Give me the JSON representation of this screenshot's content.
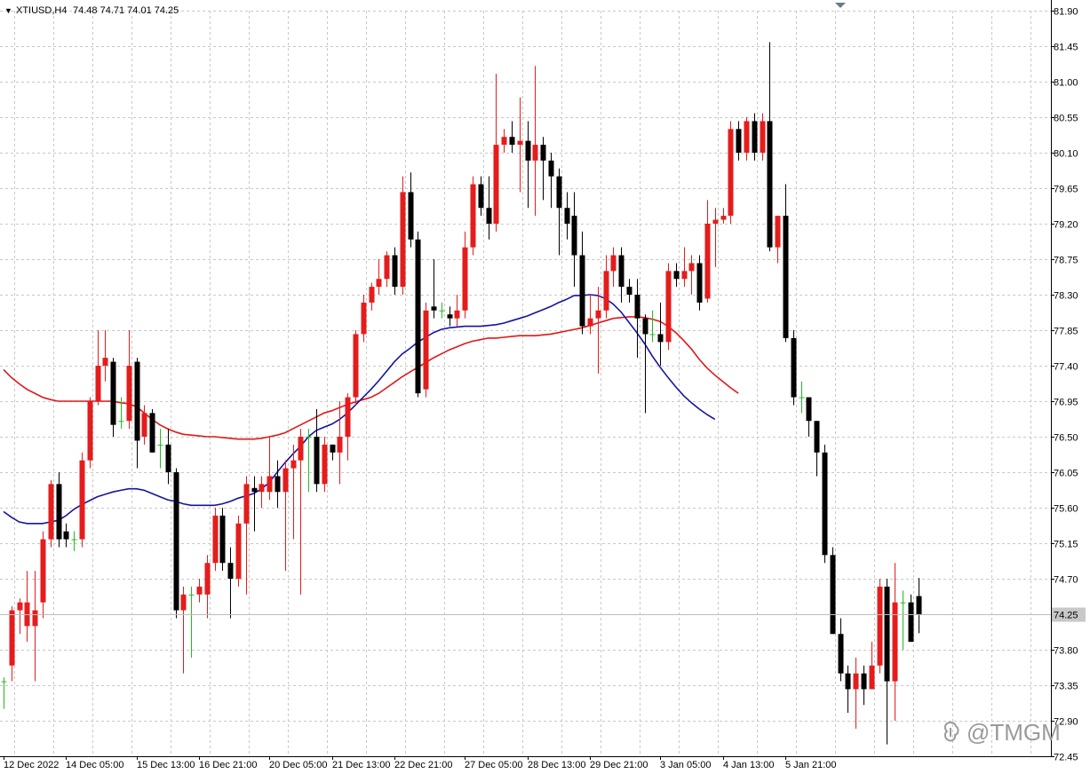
{
  "header": {
    "arrow_glyph": "▼",
    "symbol": "XTIUSD,H4",
    "ohlc": "74.48 74.71 74.01 74.25"
  },
  "watermark": {
    "text": "@TMGM",
    "icon": "tmgm-logo-icon"
  },
  "colors": {
    "bull": "#e51c1c",
    "bear": "#000000",
    "doji": "#22bb22",
    "ma_slow": "#e01818",
    "ma_fast": "#1414a0",
    "grid": "#c8c8c8",
    "price_tag_bg": "#c8c8c8",
    "current_price_line": "#bcbcbc"
  },
  "chart_data": {
    "type": "candlestick",
    "symbol": "XTIUSD",
    "timeframe": "H4",
    "grid": true,
    "ylim": [
      72.45,
      81.9
    ],
    "y_ticks": [
      "81.90",
      "81.45",
      "81.00",
      "80.55",
      "80.10",
      "79.65",
      "79.20",
      "78.75",
      "78.30",
      "77.85",
      "77.40",
      "76.95",
      "76.50",
      "76.05",
      "75.60",
      "75.15",
      "74.70",
      "74.25",
      "73.80",
      "73.35",
      "72.90",
      "72.45"
    ],
    "current_price": "74.25",
    "x_ticks": [
      {
        "bar": 0,
        "label": "12 Dec 2022"
      },
      {
        "bar": 8,
        "label": "14 Dec 05:00"
      },
      {
        "bar": 17,
        "label": "15 Dec 13:00"
      },
      {
        "bar": 25,
        "label": "16 Dec 21:00"
      },
      {
        "bar": 34,
        "label": "20 Dec 05:00"
      },
      {
        "bar": 42,
        "label": "21 Dec 13:00"
      },
      {
        "bar": 50,
        "label": "22 Dec 21:00"
      },
      {
        "bar": 59,
        "label": "27 Dec 05:00"
      },
      {
        "bar": 67,
        "label": "28 Dec 13:00"
      },
      {
        "bar": 75,
        "label": "29 Dec 21:00"
      },
      {
        "bar": 84,
        "label": "3 Jan 05:00"
      },
      {
        "bar": 92,
        "label": "4 Jan 13:00"
      },
      {
        "bar": 100,
        "label": "5 Jan 21:00"
      }
    ],
    "candles": [
      [
        73.4,
        73.4,
        73.05,
        73.45
      ],
      [
        73.6,
        74.3,
        73.4,
        74.35
      ],
      [
        74.3,
        74.4,
        74.0,
        74.45
      ],
      [
        74.1,
        74.4,
        73.9,
        74.8
      ],
      [
        74.1,
        74.3,
        73.4,
        74.8
      ],
      [
        74.4,
        75.2,
        74.2,
        75.3
      ],
      [
        75.2,
        75.9,
        75.1,
        75.95
      ],
      [
        75.9,
        75.2,
        75.1,
        76.05
      ],
      [
        75.3,
        75.2,
        75.1,
        75.4
      ],
      [
        75.2,
        75.2,
        75.05,
        75.3
      ],
      [
        75.2,
        76.2,
        75.1,
        76.3
      ],
      [
        76.2,
        76.95,
        76.1,
        77.0
      ],
      [
        76.95,
        77.4,
        76.9,
        77.85
      ],
      [
        77.4,
        77.5,
        77.2,
        77.85
      ],
      [
        77.45,
        76.65,
        76.5,
        77.5
      ],
      [
        76.7,
        76.7,
        76.6,
        77.0
      ],
      [
        76.7,
        77.4,
        76.6,
        77.85
      ],
      [
        77.45,
        76.45,
        76.1,
        77.5
      ],
      [
        76.5,
        76.8,
        76.4,
        76.9
      ],
      [
        76.8,
        76.3,
        76.3,
        76.85
      ],
      [
        76.4,
        76.4,
        76.1,
        76.6
      ],
      [
        76.4,
        76.05,
        75.9,
        76.6
      ],
      [
        76.05,
        74.3,
        74.2,
        76.1
      ],
      [
        74.3,
        74.5,
        73.5,
        74.6
      ],
      [
        74.5,
        74.5,
        73.7,
        74.6
      ],
      [
        74.5,
        74.6,
        74.4,
        74.7
      ],
      [
        74.5,
        74.9,
        74.2,
        75.0
      ],
      [
        74.9,
        75.5,
        74.8,
        75.6
      ],
      [
        75.5,
        74.9,
        74.8,
        75.6
      ],
      [
        74.9,
        74.7,
        74.2,
        75.1
      ],
      [
        74.7,
        75.4,
        74.6,
        75.5
      ],
      [
        75.4,
        75.9,
        74.5,
        76.0
      ],
      [
        75.85,
        75.8,
        75.3,
        76.0
      ],
      [
        75.8,
        75.9,
        75.6,
        76.0
      ],
      [
        75.8,
        76.0,
        75.7,
        76.5
      ],
      [
        76.0,
        75.8,
        75.6,
        76.2
      ],
      [
        75.8,
        76.1,
        74.8,
        76.2
      ],
      [
        76.1,
        76.2,
        75.2,
        76.4
      ],
      [
        76.2,
        76.5,
        74.5,
        76.6
      ],
      [
        76.5,
        76.5,
        75.8,
        76.6
      ],
      [
        76.5,
        75.9,
        75.8,
        76.85
      ],
      [
        75.9,
        76.4,
        75.8,
        76.5
      ],
      [
        76.4,
        76.3,
        76.2,
        76.4
      ],
      [
        76.3,
        76.5,
        75.9,
        76.95
      ],
      [
        76.5,
        77.0,
        76.2,
        77.05
      ],
      [
        77.0,
        77.8,
        76.9,
        77.85
      ],
      [
        77.8,
        78.2,
        77.7,
        78.3
      ],
      [
        78.2,
        78.4,
        78.1,
        78.45
      ],
      [
        78.4,
        78.5,
        78.3,
        78.75
      ],
      [
        78.5,
        78.8,
        78.4,
        78.85
      ],
      [
        78.8,
        78.4,
        78.3,
        78.9
      ],
      [
        78.4,
        79.6,
        78.3,
        79.8
      ],
      [
        79.6,
        79.0,
        78.9,
        79.85
      ],
      [
        79.0,
        77.05,
        77.0,
        79.1
      ],
      [
        77.1,
        78.1,
        77.0,
        78.2
      ],
      [
        78.15,
        78.1,
        78.0,
        78.75
      ],
      [
        78.1,
        78.1,
        78.0,
        78.2
      ],
      [
        78.05,
        78.0,
        77.9,
        78.15
      ],
      [
        78.0,
        78.1,
        77.9,
        78.3
      ],
      [
        78.1,
        78.9,
        78.0,
        79.1
      ],
      [
        78.9,
        79.7,
        78.8,
        79.8
      ],
      [
        79.7,
        79.4,
        79.3,
        79.8
      ],
      [
        79.4,
        79.2,
        79.0,
        79.8
      ],
      [
        79.2,
        80.2,
        79.1,
        81.1
      ],
      [
        80.2,
        80.3,
        80.1,
        80.4
      ],
      [
        80.3,
        80.2,
        80.1,
        80.5
      ],
      [
        80.2,
        80.25,
        79.6,
        80.8
      ],
      [
        80.25,
        80.0,
        79.4,
        80.5
      ],
      [
        80.0,
        80.2,
        79.3,
        81.2
      ],
      [
        80.2,
        80.0,
        79.5,
        80.3
      ],
      [
        80.0,
        79.8,
        79.4,
        80.1
      ],
      [
        79.8,
        79.4,
        78.8,
        79.9
      ],
      [
        79.4,
        79.2,
        79.0,
        79.6
      ],
      [
        79.3,
        78.8,
        78.4,
        79.6
      ],
      [
        78.8,
        77.9,
        77.8,
        79.1
      ],
      [
        77.9,
        78.0,
        77.8,
        78.3
      ],
      [
        78.0,
        78.1,
        77.3,
        78.4
      ],
      [
        78.1,
        78.6,
        78.0,
        78.8
      ],
      [
        78.6,
        78.8,
        78.4,
        78.9
      ],
      [
        78.8,
        78.4,
        78.2,
        78.9
      ],
      [
        78.4,
        78.3,
        78.2,
        78.5
      ],
      [
        78.3,
        78.0,
        77.5,
        78.5
      ],
      [
        78.0,
        77.8,
        76.8,
        78.05
      ],
      [
        77.8,
        77.8,
        77.7,
        78.1
      ],
      [
        77.8,
        77.7,
        77.4,
        78.2
      ],
      [
        77.7,
        78.6,
        77.6,
        78.7
      ],
      [
        78.6,
        78.5,
        78.4,
        78.7
      ],
      [
        78.5,
        78.6,
        78.4,
        78.9
      ],
      [
        78.6,
        78.7,
        78.3,
        78.8
      ],
      [
        78.7,
        78.2,
        78.1,
        78.8
      ],
      [
        78.25,
        79.2,
        78.2,
        79.5
      ],
      [
        79.2,
        79.25,
        78.65,
        79.4
      ],
      [
        79.25,
        79.3,
        79.2,
        79.4
      ],
      [
        79.3,
        80.4,
        79.2,
        80.5
      ],
      [
        80.4,
        80.1,
        80.0,
        80.5
      ],
      [
        80.1,
        80.5,
        80.0,
        80.55
      ],
      [
        80.5,
        80.1,
        80.0,
        80.6
      ],
      [
        80.1,
        80.5,
        80.0,
        80.6
      ],
      [
        80.5,
        78.9,
        78.85,
        81.5
      ],
      [
        78.9,
        79.3,
        78.7,
        79.3
      ],
      [
        79.3,
        77.75,
        77.7,
        79.7
      ],
      [
        77.75,
        77.0,
        76.9,
        77.85
      ],
      [
        77.0,
        77.0,
        76.8,
        77.2
      ],
      [
        77.0,
        76.7,
        76.5,
        77.0
      ],
      [
        76.7,
        76.3,
        76.0,
        76.7
      ],
      [
        76.3,
        75.0,
        74.9,
        76.4
      ],
      [
        75.0,
        74.0,
        74.0,
        75.1
      ],
      [
        74.0,
        73.5,
        73.4,
        74.2
      ],
      [
        73.5,
        73.3,
        73.0,
        73.6
      ],
      [
        73.3,
        73.5,
        72.8,
        73.7
      ],
      [
        73.5,
        73.3,
        73.1,
        73.6
      ],
      [
        73.3,
        73.6,
        73.3,
        73.9
      ],
      [
        73.6,
        74.6,
        73.5,
        74.7
      ],
      [
        74.6,
        73.4,
        72.6,
        74.7
      ],
      [
        73.4,
        74.4,
        72.9,
        74.9
      ],
      [
        74.4,
        74.4,
        73.8,
        74.55
      ],
      [
        74.4,
        73.9,
        73.9,
        74.5
      ],
      [
        74.48,
        74.25,
        74.01,
        74.71
      ]
    ],
    "series": [
      {
        "kind": "ma_slow",
        "values": [
          77.35,
          77.25,
          77.17,
          77.1,
          77.05,
          77.0,
          76.97,
          76.95,
          76.95,
          76.95,
          76.95,
          76.95,
          76.95,
          76.95,
          76.95,
          76.93,
          76.92,
          76.88,
          76.8,
          76.72,
          76.65,
          76.6,
          76.56,
          76.53,
          76.52,
          76.51,
          76.5,
          76.5,
          76.49,
          76.48,
          76.47,
          76.47,
          76.47,
          76.48,
          76.5,
          76.52,
          76.55,
          76.6,
          76.65,
          76.7,
          76.75,
          76.8,
          76.83,
          76.87,
          76.91,
          76.94,
          76.97,
          77.0,
          77.05,
          77.12,
          77.19,
          77.26,
          77.32,
          77.38,
          77.44,
          77.5,
          77.55,
          77.6,
          77.64,
          77.68,
          77.71,
          77.73,
          77.75,
          77.75,
          77.76,
          77.77,
          77.78,
          77.78,
          77.78,
          77.79,
          77.8,
          77.82,
          77.84,
          77.86,
          77.88,
          77.91,
          77.94,
          77.97,
          78.0,
          78.01,
          78.02,
          78.02,
          78.01,
          77.99,
          77.96,
          77.9,
          77.82,
          77.72,
          77.61,
          77.48,
          77.37,
          77.28,
          77.2,
          77.12,
          77.05
        ]
      },
      {
        "kind": "ma_fast",
        "values": [
          75.55,
          75.48,
          75.42,
          75.4,
          75.4,
          75.4,
          75.42,
          75.44,
          75.5,
          75.58,
          75.64,
          75.69,
          75.74,
          75.77,
          75.8,
          75.82,
          75.84,
          75.84,
          75.82,
          75.78,
          75.74,
          75.7,
          75.68,
          75.65,
          75.63,
          75.63,
          75.63,
          75.63,
          75.65,
          75.68,
          75.72,
          75.75,
          75.78,
          75.84,
          75.92,
          76.05,
          76.17,
          76.28,
          76.38,
          76.5,
          76.58,
          76.62,
          76.66,
          76.72,
          76.8,
          76.9,
          77.0,
          77.1,
          77.21,
          77.33,
          77.45,
          77.55,
          77.62,
          77.7,
          77.76,
          77.82,
          77.86,
          77.88,
          77.89,
          77.9,
          77.9,
          77.9,
          77.91,
          77.92,
          77.94,
          77.97,
          78.0,
          78.03,
          78.07,
          78.11,
          78.15,
          78.2,
          78.24,
          78.29,
          78.29,
          78.3,
          78.29,
          78.25,
          78.18,
          78.08,
          77.95,
          77.82,
          77.68,
          77.52,
          77.38,
          77.25,
          77.13,
          77.02,
          76.93,
          76.85,
          76.78,
          76.72
        ]
      }
    ]
  }
}
